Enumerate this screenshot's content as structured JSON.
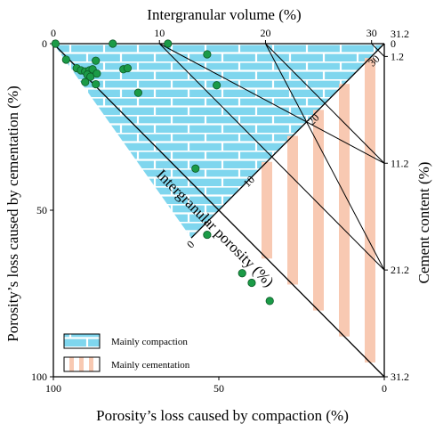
{
  "chart_data": {
    "type": "scatter",
    "title": "",
    "top_axis": {
      "label": "Intergranular  volume (%)",
      "range": [
        0,
        31.2
      ],
      "ticks": [
        {
          "v": 0,
          "label": "0"
        },
        {
          "v": 10,
          "label": "10"
        },
        {
          "v": 20,
          "label": "20"
        },
        {
          "v": 30,
          "label": "30"
        }
      ]
    },
    "bottom_axis": {
      "label": "Porosity’s loss caused by compaction (%)",
      "range": [
        100,
        0
      ],
      "ticks": [
        {
          "v": 100,
          "label": "100"
        },
        {
          "v": 50,
          "label": "50"
        },
        {
          "v": 0,
          "label": "0"
        }
      ]
    },
    "left_axis": {
      "label": "Porosity’s loss caused by cementation (%)",
      "range": [
        0,
        100
      ],
      "ticks": [
        {
          "v": 0,
          "label": "0"
        },
        {
          "v": 50,
          "label": "50"
        },
        {
          "v": 100,
          "label": "100"
        }
      ]
    },
    "right_axis": {
      "label": "Cement  content (%)",
      "range": [
        0,
        31.2
      ],
      "ticks": [
        {
          "v": 0,
          "label": "31.2"
        },
        {
          "v": 1.2,
          "label": "1.2"
        },
        {
          "v": 11.2,
          "label": "11.2"
        },
        {
          "v": 21.2,
          "label": "21.2"
        },
        {
          "v": 31.2,
          "label": "31.2"
        }
      ],
      "top_corner_label": "0"
    },
    "diagonal_axis": {
      "label": "Intergranular  porosity (%)",
      "ticks": [
        {
          "v": 0,
          "label": "0"
        },
        {
          "v": 10,
          "label": "10"
        },
        {
          "v": 20,
          "label": "20"
        },
        {
          "v": 30,
          "label": "30"
        }
      ]
    },
    "initial_porosity": 31.2,
    "regions": [
      {
        "name": "Mainly compaction",
        "pattern": "brick",
        "color": "#7fd6ee"
      },
      {
        "name": "Mainly cementation",
        "pattern": "vertical-stripes",
        "color": "#f8c9b2"
      }
    ],
    "point_color": "#1b9b47",
    "points": [
      {
        "iv": 0.2,
        "cem": 0.0
      },
      {
        "iv": 10.8,
        "cem": 0.0
      },
      {
        "iv": 5.6,
        "cem": 0.0
      },
      {
        "iv": 14.5,
        "cem": 1.0
      },
      {
        "iv": 1.2,
        "cem": 1.5
      },
      {
        "iv": 4.0,
        "cem": 1.6
      },
      {
        "iv": 2.2,
        "cem": 2.3
      },
      {
        "iv": 2.6,
        "cem": 2.5
      },
      {
        "iv": 3.0,
        "cem": 2.6
      },
      {
        "iv": 3.4,
        "cem": 2.5
      },
      {
        "iv": 3.7,
        "cem": 2.4
      },
      {
        "iv": 3.2,
        "cem": 2.9
      },
      {
        "iv": 3.5,
        "cem": 3.1
      },
      {
        "iv": 4.1,
        "cem": 2.8
      },
      {
        "iv": 6.6,
        "cem": 2.4
      },
      {
        "iv": 7.0,
        "cem": 2.3
      },
      {
        "iv": 3.0,
        "cem": 3.6
      },
      {
        "iv": 4.0,
        "cem": 3.8
      },
      {
        "iv": 15.4,
        "cem": 3.9
      },
      {
        "iv": 8.0,
        "cem": 4.6
      },
      {
        "iv": 13.4,
        "cem": 11.7
      },
      {
        "iv": 14.5,
        "cem": 17.9
      },
      {
        "iv": 17.8,
        "cem": 21.5
      },
      {
        "iv": 18.7,
        "cem": 22.4
      },
      {
        "iv": 20.4,
        "cem": 24.1
      }
    ]
  }
}
